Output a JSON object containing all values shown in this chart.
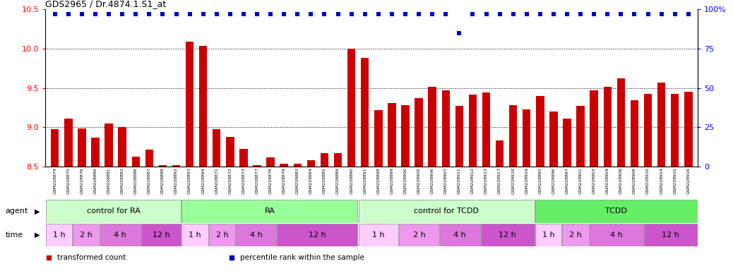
{
  "title": "GDS2965 / Dr.4874.1.S1_at",
  "ylim": [
    8.5,
    10.5
  ],
  "yticks": [
    8.5,
    9.0,
    9.5,
    10.0,
    10.5
  ],
  "right_ytick_vals": [
    0,
    25,
    50,
    75,
    100
  ],
  "right_ytick_labels": [
    "0",
    "25",
    "50",
    "75",
    "100%"
  ],
  "samples": [
    "GSM228874",
    "GSM228875",
    "GSM228876",
    "GSM228880",
    "GSM228881",
    "GSM228882",
    "GSM228886",
    "GSM228887",
    "GSM228888",
    "GSM228892",
    "GSM228893",
    "GSM228894",
    "GSM228871",
    "GSM228872",
    "GSM228873",
    "GSM228877",
    "GSM228878",
    "GSM228879",
    "GSM228883",
    "GSM228884",
    "GSM228885",
    "GSM228889",
    "GSM228890",
    "GSM228891",
    "GSM228898",
    "GSM228899",
    "GSM228900",
    "GSM228905",
    "GSM228906",
    "GSM228907",
    "GSM228911",
    "GSM228912",
    "GSM228913",
    "GSM228917",
    "GSM228918",
    "GSM228919",
    "GSM228895",
    "GSM228896",
    "GSM228897",
    "GSM228901",
    "GSM228903",
    "GSM228904",
    "GSM228908",
    "GSM228909",
    "GSM228910",
    "GSM228914",
    "GSM228915",
    "GSM228916"
  ],
  "bar_values": [
    8.98,
    9.11,
    8.99,
    8.87,
    9.05,
    9.0,
    8.63,
    8.72,
    8.52,
    8.52,
    10.09,
    10.04,
    8.98,
    8.88,
    8.73,
    8.52,
    8.62,
    8.54,
    8.54,
    8.58,
    8.67,
    8.67,
    10.0,
    9.88,
    9.22,
    9.31,
    9.28,
    9.37,
    9.52,
    9.47,
    9.27,
    9.42,
    9.44,
    8.83,
    9.28,
    9.23,
    9.4,
    9.2,
    9.11,
    9.27,
    9.47,
    9.52,
    9.62,
    9.35,
    9.43,
    9.57,
    9.43,
    9.45
  ],
  "percentile_values": [
    97,
    97,
    97,
    97,
    97,
    97,
    97,
    97,
    97,
    97,
    97,
    97,
    97,
    97,
    97,
    97,
    97,
    97,
    97,
    97,
    97,
    97,
    97,
    97,
    97,
    97,
    97,
    97,
    97,
    97,
    85,
    97,
    97,
    97,
    97,
    97,
    97,
    97,
    97,
    97,
    97,
    97,
    97,
    97,
    97,
    97,
    97,
    97
  ],
  "bar_color": "#cc0000",
  "percentile_color": "#0000cc",
  "agent_groups": [
    {
      "label": "control for RA",
      "start": 0,
      "end": 9,
      "color": "#ccffcc"
    },
    {
      "label": "RA",
      "start": 10,
      "end": 22,
      "color": "#99ff99"
    },
    {
      "label": "control for TCDD",
      "start": 23,
      "end": 35,
      "color": "#ccffcc"
    },
    {
      "label": "TCDD",
      "start": 36,
      "end": 47,
      "color": "#66ee66"
    }
  ],
  "time_groups": [
    {
      "label": "1 h",
      "start": 0,
      "end": 1,
      "color": "#ffccff"
    },
    {
      "label": "2 h",
      "start": 2,
      "end": 3,
      "color": "#ee99ee"
    },
    {
      "label": "4 h",
      "start": 4,
      "end": 6,
      "color": "#dd77dd"
    },
    {
      "label": "12 h",
      "start": 7,
      "end": 9,
      "color": "#cc55cc"
    },
    {
      "label": "1 h",
      "start": 10,
      "end": 11,
      "color": "#ffccff"
    },
    {
      "label": "2 h",
      "start": 12,
      "end": 13,
      "color": "#ee99ee"
    },
    {
      "label": "4 h",
      "start": 14,
      "end": 16,
      "color": "#dd77dd"
    },
    {
      "label": "12 h",
      "start": 17,
      "end": 22,
      "color": "#cc55cc"
    },
    {
      "label": "1 h",
      "start": 23,
      "end": 25,
      "color": "#ffccff"
    },
    {
      "label": "2 h",
      "start": 26,
      "end": 28,
      "color": "#ee99ee"
    },
    {
      "label": "4 h",
      "start": 29,
      "end": 31,
      "color": "#dd77dd"
    },
    {
      "label": "12 h",
      "start": 32,
      "end": 35,
      "color": "#cc55cc"
    },
    {
      "label": "1 h",
      "start": 36,
      "end": 37,
      "color": "#ffccff"
    },
    {
      "label": "2 h",
      "start": 38,
      "end": 39,
      "color": "#ee99ee"
    },
    {
      "label": "4 h",
      "start": 40,
      "end": 43,
      "color": "#dd77dd"
    },
    {
      "label": "12 h",
      "start": 44,
      "end": 47,
      "color": "#cc55cc"
    }
  ],
  "legend_items": [
    {
      "label": "transformed count",
      "color": "#cc0000"
    },
    {
      "label": "percentile rank within the sample",
      "color": "#0000cc"
    }
  ],
  "grid_yticks": [
    9.0,
    9.5,
    10.0
  ],
  "bg_color": "#ffffff"
}
